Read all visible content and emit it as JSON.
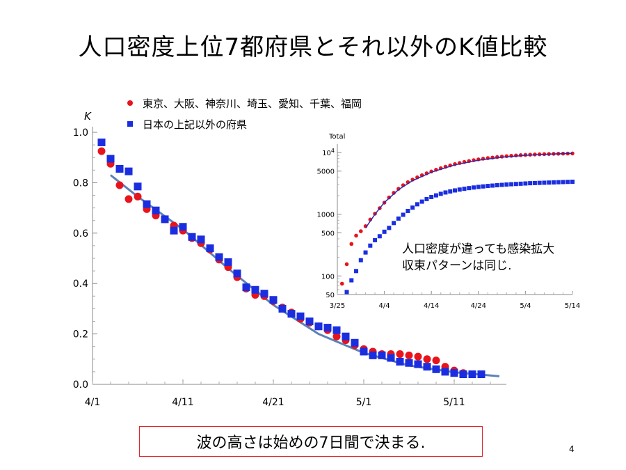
{
  "title": "人口密度上位7都府県とそれ以外のK値比較",
  "legend": {
    "series_a": "東京、大阪、神奈川、埼玉、愛知、千葉、福岡",
    "series_b": "日本の上記以外の府県"
  },
  "inset_note": {
    "line1": "人口密度が違っても感染拡大",
    "line2": "収束パターンは同じ."
  },
  "caption": "波の高さは始めの7日間で決まる.",
  "page_number": "4",
  "colors": {
    "series_a": "#e8141c",
    "series_b": "#1a2ee0",
    "fit": "#5b82b8",
    "caption_border": "#e0262b"
  },
  "chart_data": [
    {
      "type": "scatter",
      "ylabel": "K",
      "ylim": [
        0,
        1.0
      ],
      "xlim_days": [
        0,
        45
      ],
      "x_ticks": [
        {
          "day": 0,
          "label": "4/1"
        },
        {
          "day": 10,
          "label": "4/11"
        },
        {
          "day": 20,
          "label": "4/21"
        },
        {
          "day": 30,
          "label": "5/1"
        },
        {
          "day": 40,
          "label": "5/11"
        }
      ],
      "y_ticks": [
        "0.0",
        "0.2",
        "0.4",
        "0.6",
        "0.8",
        "1.0"
      ],
      "series": [
        {
          "name": "東京、大阪、神奈川、埼玉、愛知、千葉、福岡",
          "marker": "circle",
          "x_start": 1,
          "values": [
            0.925,
            0.875,
            0.79,
            0.735,
            0.745,
            0.695,
            0.67,
            0.655,
            0.63,
            0.61,
            0.58,
            0.56,
            0.535,
            0.495,
            0.465,
            0.425,
            0.38,
            0.355,
            0.35,
            0.33,
            0.305,
            0.285,
            0.26,
            0.245,
            0.23,
            0.215,
            0.19,
            0.175,
            0.155,
            0.14,
            0.13,
            0.12,
            0.12,
            0.12,
            0.115,
            0.11,
            0.1,
            0.095,
            0.07,
            0.055,
            0.045
          ]
        },
        {
          "name": "日本の上記以外の府県",
          "marker": "square",
          "x_start": 1,
          "values": [
            0.96,
            0.895,
            0.855,
            0.845,
            0.785,
            0.715,
            0.69,
            0.655,
            0.61,
            0.625,
            0.585,
            0.575,
            0.54,
            0.505,
            0.485,
            0.44,
            0.385,
            0.375,
            0.36,
            0.335,
            0.3,
            0.28,
            0.27,
            0.25,
            0.23,
            0.225,
            0.215,
            0.19,
            0.165,
            0.13,
            0.115,
            0.115,
            0.105,
            0.09,
            0.085,
            0.08,
            0.07,
            0.06,
            0.05,
            0.045,
            0.04,
            0.04,
            0.04
          ]
        }
      ],
      "fit_curve": {
        "x": [
          2,
          5,
          10,
          15,
          20,
          25,
          30,
          35,
          40,
          45
        ],
        "y": [
          0.83,
          0.745,
          0.615,
          0.46,
          0.315,
          0.2,
          0.125,
          0.075,
          0.048,
          0.032
        ]
      }
    },
    {
      "type": "scatter",
      "ylabel": "Total",
      "y_scale": "log",
      "ylim": [
        50,
        12000
      ],
      "xlim_days": [
        0,
        50
      ],
      "x_ticks": [
        {
          "day": 0,
          "label": "3/25"
        },
        {
          "day": 10,
          "label": "4/4"
        },
        {
          "day": 20,
          "label": "4/14"
        },
        {
          "day": 30,
          "label": "4/24"
        },
        {
          "day": 40,
          "label": "5/4"
        },
        {
          "day": 50,
          "label": "5/14"
        }
      ],
      "y_ticks": [
        {
          "value": 50,
          "label": "50"
        },
        {
          "value": 100,
          "label": "100"
        },
        {
          "value": 500,
          "label": "500"
        },
        {
          "value": 1000,
          "label": "1000"
        },
        {
          "value": 5000,
          "label": "5000"
        },
        {
          "value": 10000,
          "label": "10",
          "sup": "4"
        }
      ],
      "series": [
        {
          "name": "東京、大阪、神奈川、埼玉、愛知、千葉、福岡",
          "marker": "circle",
          "x_start": 1,
          "x_step": 1,
          "values": [
            75,
            155,
            330,
            450,
            530,
            640,
            820,
            1020,
            1250,
            1540,
            1870,
            2220,
            2580,
            2950,
            3300,
            3640,
            3960,
            4280,
            4600,
            4920,
            5250,
            5570,
            5880,
            6180,
            6480,
            6760,
            7020,
            7280,
            7510,
            7730,
            7930,
            8110,
            8280,
            8440,
            8590,
            8720,
            8840,
            8950,
            9050,
            9140,
            9220,
            9290,
            9350,
            9410,
            9460,
            9510,
            9550,
            9590,
            9620,
            9650
          ]
        },
        {
          "name": "日本の上記以外の府県",
          "marker": "square",
          "x_start": 2,
          "x_step": 1,
          "values": [
            55,
            85,
            120,
            180,
            240,
            310,
            380,
            440,
            520,
            600,
            720,
            850,
            980,
            1130,
            1280,
            1450,
            1600,
            1760,
            1900,
            2020,
            2140,
            2250,
            2340,
            2430,
            2510,
            2580,
            2650,
            2710,
            2770,
            2820,
            2870,
            2910,
            2950,
            2990,
            3030,
            3060,
            3090,
            3120,
            3150,
            3180,
            3200,
            3220,
            3240,
            3260,
            3280,
            3300,
            3320,
            3340,
            3360
          ]
        }
      ],
      "fit_curve": {
        "x": [
          6,
          8,
          10,
          13,
          16,
          20,
          25,
          30,
          35,
          40,
          45,
          50
        ],
        "y": [
          600,
          1000,
          1550,
          2500,
          3500,
          4800,
          6300,
          7500,
          8400,
          9000,
          9400,
          9700
        ]
      }
    }
  ]
}
